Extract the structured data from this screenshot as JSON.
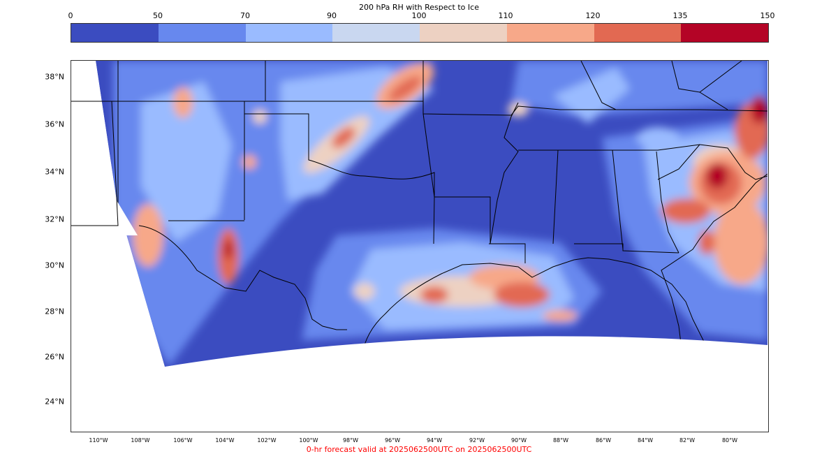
{
  "colorbar": {
    "title": "200 hPa RH with Respect to Ice",
    "ticks": [
      "0",
      "50",
      "70",
      "90",
      "100",
      "110",
      "120",
      "135",
      "150"
    ],
    "colors": [
      "#3b4cc0",
      "#6788ee",
      "#9abbff",
      "#c9d7f0",
      "#edd1c2",
      "#f7a889",
      "#e26952",
      "#b40426"
    ]
  },
  "map": {
    "lat_labels": [
      "38°N",
      "36°N",
      "34°N",
      "32°N",
      "30°N",
      "28°N",
      "26°N",
      "24°N"
    ],
    "lon_labels": [
      "110°W",
      "108°W",
      "106°W",
      "104°W",
      "102°W",
      "100°W",
      "98°W",
      "96°W",
      "94°W",
      "92°W",
      "90°W",
      "88°W",
      "86°W",
      "84°W",
      "82°W",
      "80°W"
    ]
  },
  "caption": "0-hr forecast valid at 2025062500UTC on 2025062500UTC"
}
